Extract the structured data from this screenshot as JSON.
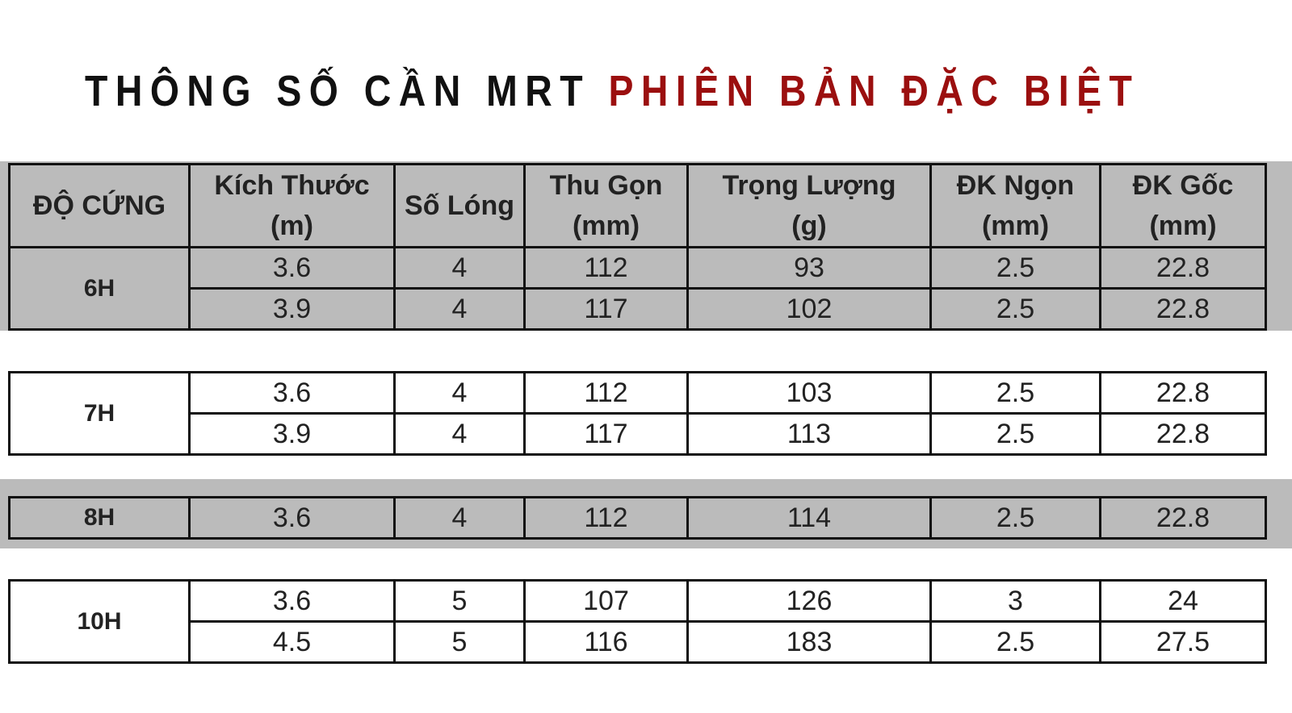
{
  "title": {
    "part1": "THÔNG SỐ CẦN MRT",
    "part2": "PHIÊN BẢN ĐẶC BIỆT",
    "accent_color": "#9b0f0f"
  },
  "headers": [
    {
      "line1": "ĐỘ CỨNG",
      "line2": ""
    },
    {
      "line1": "Kích Thước",
      "line2": "(m)"
    },
    {
      "line1": "Số Lóng",
      "line2": ""
    },
    {
      "line1": "Thu Gọn",
      "line2": "(mm)"
    },
    {
      "line1": "Trọng Lượng",
      "line2": "(g)"
    },
    {
      "line1": "ĐK Ngọn",
      "line2": "(mm)"
    },
    {
      "line1": "ĐK Gốc",
      "line2": "(mm)"
    }
  ],
  "groups": [
    {
      "hardness": "6H",
      "rows": [
        [
          "3.6",
          "4",
          "112",
          "93",
          "2.5",
          "22.8"
        ],
        [
          "3.9",
          "4",
          "117",
          "102",
          "2.5",
          "22.8"
        ]
      ]
    },
    {
      "hardness": "7H",
      "rows": [
        [
          "3.6",
          "4",
          "112",
          "103",
          "2.5",
          "22.8"
        ],
        [
          "3.9",
          "4",
          "117",
          "113",
          "2.5",
          "22.8"
        ]
      ]
    },
    {
      "hardness": "8H",
      "rows": [
        [
          "3.6",
          "4",
          "112",
          "114",
          "2.5",
          "22.8"
        ]
      ]
    },
    {
      "hardness": "10H",
      "rows": [
        [
          "3.6",
          "5",
          "107",
          "126",
          "3",
          "24"
        ],
        [
          "4.5",
          "5",
          "116",
          "183",
          "2.5",
          "27.5"
        ]
      ]
    }
  ]
}
